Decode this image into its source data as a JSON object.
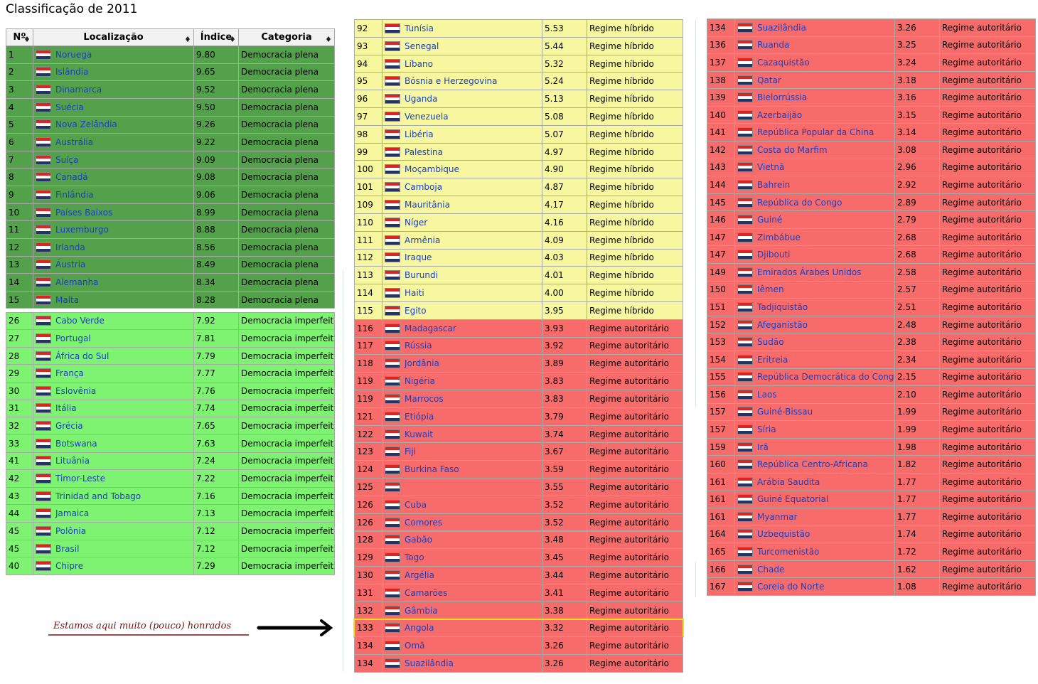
{
  "title": "Classificação de 2011",
  "header": [
    "Nº",
    "Localização",
    "Índice",
    "Categoria"
  ],
  "annotation": "Estamos aqui muito (pouco) honrados",
  "tables": [
    {
      "groups": [
        {
          "color": "#53a14a",
          "rows": [
            [
              "1",
              "Noruega",
              "9.80",
              "Democracia plena"
            ],
            [
              "2",
              "Islândia",
              "9.65",
              "Democracia plena"
            ],
            [
              "3",
              "Dinamarca",
              "9.52",
              "Democracia plena"
            ],
            [
              "4",
              "Suécia",
              "9.50",
              "Democracia plena"
            ],
            [
              "5",
              "Nova Zelândia",
              "9.26",
              "Democracia plena"
            ],
            [
              "6",
              "Austrália",
              "9.22",
              "Democracia plena"
            ],
            [
              "7",
              "Suíça",
              "9.09",
              "Democracia plena"
            ],
            [
              "8",
              "Canadá",
              "9.08",
              "Democracia plena"
            ],
            [
              "9",
              "Finlândia",
              "9.06",
              "Democracia plena"
            ],
            [
              "10",
              "Países Baixos",
              "8.99",
              "Democracia plena"
            ],
            [
              "11",
              "Luxemburgo",
              "8.88",
              "Democracia plena"
            ],
            [
              "12",
              "Irlanda",
              "8.56",
              "Democracia plena"
            ],
            [
              "13",
              "Áustria",
              "8.49",
              "Democracia plena"
            ],
            [
              "14",
              "Alemanha",
              "8.34",
              "Democracia plena"
            ],
            [
              "15",
              "Malta",
              "8.28",
              "Democracia plena"
            ]
          ]
        },
        {
          "color": "#7ef271",
          "rows": [
            [
              "26",
              "Cabo Verde",
              "7.92",
              "Democracia imperfeita"
            ],
            [
              "27",
              "Portugal",
              "7.81",
              "Democracia imperfeita"
            ],
            [
              "28",
              "África do Sul",
              "7.79",
              "Democracia imperfeita"
            ],
            [
              "29",
              "França",
              "7.77",
              "Democracia imperfeita"
            ],
            [
              "30",
              "Eslovênia",
              "7.76",
              "Democracia imperfeita"
            ],
            [
              "31",
              "Itália",
              "7.74",
              "Democracia imperfeita"
            ],
            [
              "32",
              "Grécia",
              "7.65",
              "Democracia imperfeita"
            ],
            [
              "33",
              "Botswana",
              "7.63",
              "Democracia imperfeita"
            ],
            [
              "41",
              "Lituânia",
              "7.24",
              "Democracia imperfeita"
            ],
            [
              "42",
              "Timor-Leste",
              "7.22",
              "Democracia imperfeita"
            ],
            [
              "43",
              "Trinidad and Tobago",
              "7.16",
              "Democracia imperfeita"
            ],
            [
              "44",
              "Jamaica",
              "7.13",
              "Democracia imperfeita"
            ],
            [
              "45",
              "Polônia",
              "7.12",
              "Democracia imperfeita"
            ],
            [
              "45",
              "Brasil",
              "7.12",
              "Democracia imperfeita"
            ],
            [
              "40",
              "Chipre",
              "7.29",
              "Democracia imperfeita"
            ]
          ]
        }
      ]
    },
    {
      "groups": [
        {
          "color": "#f7f79f",
          "rows": [
            [
              "92",
              "Tunísia",
              "5.53",
              "Regime híbrido"
            ],
            [
              "93",
              "Senegal",
              "5.44",
              "Regime híbrido"
            ],
            [
              "94",
              "Líbano",
              "5.32",
              "Regime híbrido"
            ],
            [
              "95",
              "Bósnia e Herzegovina",
              "5.24",
              "Regime híbrido"
            ],
            [
              "96",
              "Uganda",
              "5.13",
              "Regime híbrido"
            ],
            [
              "97",
              "Venezuela",
              "5.08",
              "Regime híbrido"
            ],
            [
              "98",
              "Libéria",
              "5.07",
              "Regime híbrido"
            ],
            [
              "99",
              "Palestina",
              "4.97",
              "Regime híbrido"
            ],
            [
              "100",
              "Moçambique",
              "4.90",
              "Regime híbrido"
            ],
            [
              "101",
              "Camboja",
              "4.87",
              "Regime híbrido"
            ],
            [
              "109",
              "Mauritânia",
              "4.17",
              "Regime híbrido"
            ],
            [
              "110",
              "Níger",
              "4.16",
              "Regime híbrido"
            ],
            [
              "111",
              "Armênia",
              "4.09",
              "Regime híbrido"
            ],
            [
              "112",
              "Iraque",
              "4.03",
              "Regime híbrido"
            ],
            [
              "113",
              "Burundi",
              "4.01",
              "Regime híbrido"
            ],
            [
              "114",
              "Haiti",
              "4.00",
              "Regime híbrido"
            ],
            [
              "115",
              "Egito",
              "3.95",
              "Regime híbrido"
            ]
          ]
        },
        {
          "color": "#f76b6b",
          "highlight": 17,
          "rows": [
            [
              "116",
              "Madagascar",
              "3.93",
              "Regime autoritário"
            ],
            [
              "117",
              "Rússia",
              "3.92",
              "Regime autoritário"
            ],
            [
              "118",
              "Jordânia",
              "3.89",
              "Regime autoritário"
            ],
            [
              "119",
              "Nigéria",
              "3.83",
              "Regime autoritário"
            ],
            [
              "119",
              "Marrocos",
              "3.83",
              "Regime autoritário"
            ],
            [
              "121",
              "Etiópia",
              "3.79",
              "Regime autoritário"
            ],
            [
              "122",
              "Kuwait",
              "3.74",
              "Regime autoritário"
            ],
            [
              "123",
              "Fiji",
              "3.67",
              "Regime autoritário"
            ],
            [
              "124",
              "Burkina Faso",
              "3.59",
              "Regime autoritário"
            ],
            [
              "125",
              null,
              "3.55",
              "Regime autoritário"
            ],
            [
              "126",
              "Cuba",
              "3.52",
              "Regime autoritário"
            ],
            [
              "126",
              "Comores",
              "3.52",
              "Regime autoritário"
            ],
            [
              "128",
              "Gabão",
              "3.48",
              "Regime autoritário"
            ],
            [
              "129",
              "Togo",
              "3.45",
              "Regime autoritário"
            ],
            [
              "130",
              "Argélia",
              "3.44",
              "Regime autoritário"
            ],
            [
              "131",
              "Camarões",
              "3.41",
              "Regime autoritário"
            ],
            [
              "132",
              "Gâmbia",
              "3.38",
              "Regime autoritário"
            ],
            [
              "133",
              "Angola",
              "3.32",
              "Regime autoritário"
            ],
            [
              "134",
              "Omã",
              "3.26",
              "Regime autoritário"
            ],
            [
              "134",
              "Suazilândia",
              "3.26",
              "Regime autoritário"
            ]
          ]
        }
      ]
    },
    {
      "groups": [
        {
          "color": "#f76b6b",
          "rows": [
            [
              "134",
              "Suazilândia",
              "3.26",
              "Regime autoritário"
            ],
            [
              "136",
              "Ruanda",
              "3.25",
              "Regime autoritário"
            ],
            [
              "137",
              "Cazaquistão",
              "3.24",
              "Regime autoritário"
            ],
            [
              "138",
              "Qatar",
              "3.18",
              "Regime autoritário"
            ],
            [
              "139",
              "Bielorrússia",
              "3.16",
              "Regime autoritário"
            ],
            [
              "140",
              "Azerbaijão",
              "3.15",
              "Regime autoritário"
            ],
            [
              "141",
              "República Popular da China",
              "3.14",
              "Regime autoritário"
            ],
            [
              "142",
              "Costa do Marfim",
              "3.08",
              "Regime autoritário"
            ],
            [
              "143",
              "Vietnã",
              "2.96",
              "Regime autoritário"
            ],
            [
              "144",
              "Bahrein",
              "2.92",
              "Regime autoritário"
            ],
            [
              "145",
              "República do Congo",
              "2.89",
              "Regime autoritário"
            ],
            [
              "146",
              "Guiné",
              "2.79",
              "Regime autoritário"
            ],
            [
              "147",
              "Zimbábue",
              "2.68",
              "Regime autoritário"
            ],
            [
              "147",
              "Djibouti",
              "2.68",
              "Regime autoritário"
            ],
            [
              "149",
              "Emirados Árabes Unidos",
              "2.58",
              "Regime autoritário"
            ],
            [
              "150",
              "Iêmen",
              "2.57",
              "Regime autoritário"
            ],
            [
              "151",
              "Tadjiquistão",
              "2.51",
              "Regime autoritário"
            ],
            [
              "152",
              "Afeganistão",
              "2.48",
              "Regime autoritário"
            ],
            [
              "153",
              "Sudão",
              "2.38",
              "Regime autoritário"
            ],
            [
              "154",
              "Eritreia",
              "2.34",
              "Regime autoritário"
            ],
            [
              "155",
              "República Democrática do Congo",
              "2.15",
              "Regime autoritário"
            ],
            [
              "156",
              "Laos",
              "2.10",
              "Regime autoritário"
            ],
            [
              "157",
              "Guiné-Bissau",
              "1.99",
              "Regime autoritário"
            ],
            [
              "157",
              "Síria",
              "1.99",
              "Regime autoritário"
            ],
            [
              "159",
              "Irã",
              "1.98",
              "Regime autoritário"
            ],
            [
              "160",
              "República Centro-Africana",
              "1.82",
              "Regime autoritário"
            ],
            [
              "161",
              "Arábia Saudita",
              "1.77",
              "Regime autoritário"
            ],
            [
              "161",
              "Guiné Equatorial",
              "1.77",
              "Regime autoritário"
            ],
            [
              "161",
              "Myanmar",
              "1.77",
              "Regime autoritário"
            ],
            [
              "164",
              "Uzbequistão",
              "1.74",
              "Regime autoritário"
            ],
            [
              "165",
              "Turcomenistão",
              "1.72",
              "Regime autoritário"
            ],
            [
              "166",
              "Chade",
              "1.62",
              "Regime autoritário"
            ],
            [
              "167",
              "Coreia do Norte",
              "1.08",
              "Regime autoritário"
            ]
          ]
        }
      ]
    }
  ]
}
